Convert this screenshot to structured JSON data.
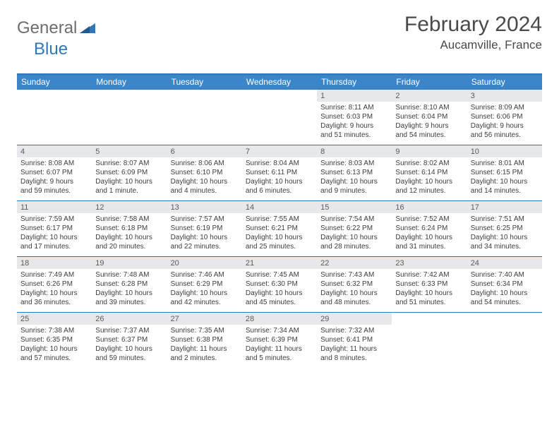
{
  "logo": {
    "general": "General",
    "blue": "Blue"
  },
  "title": "February 2024",
  "location": "Aucamville, France",
  "colors": {
    "header_bg": "#3a86c9",
    "border": "#2f77b8",
    "daynum_bg": "#e7e8ea",
    "text": "#3d3d3d",
    "title_color": "#4a4a4a"
  },
  "weekdays": [
    "Sunday",
    "Monday",
    "Tuesday",
    "Wednesday",
    "Thursday",
    "Friday",
    "Saturday"
  ],
  "weeks": [
    [
      null,
      null,
      null,
      null,
      {
        "n": "1",
        "sr": "Sunrise: 8:11 AM",
        "ss": "Sunset: 6:03 PM",
        "dl1": "Daylight: 9 hours",
        "dl2": "and 51 minutes."
      },
      {
        "n": "2",
        "sr": "Sunrise: 8:10 AM",
        "ss": "Sunset: 6:04 PM",
        "dl1": "Daylight: 9 hours",
        "dl2": "and 54 minutes."
      },
      {
        "n": "3",
        "sr": "Sunrise: 8:09 AM",
        "ss": "Sunset: 6:06 PM",
        "dl1": "Daylight: 9 hours",
        "dl2": "and 56 minutes."
      }
    ],
    [
      {
        "n": "4",
        "sr": "Sunrise: 8:08 AM",
        "ss": "Sunset: 6:07 PM",
        "dl1": "Daylight: 9 hours",
        "dl2": "and 59 minutes."
      },
      {
        "n": "5",
        "sr": "Sunrise: 8:07 AM",
        "ss": "Sunset: 6:09 PM",
        "dl1": "Daylight: 10 hours",
        "dl2": "and 1 minute."
      },
      {
        "n": "6",
        "sr": "Sunrise: 8:06 AM",
        "ss": "Sunset: 6:10 PM",
        "dl1": "Daylight: 10 hours",
        "dl2": "and 4 minutes."
      },
      {
        "n": "7",
        "sr": "Sunrise: 8:04 AM",
        "ss": "Sunset: 6:11 PM",
        "dl1": "Daylight: 10 hours",
        "dl2": "and 6 minutes."
      },
      {
        "n": "8",
        "sr": "Sunrise: 8:03 AM",
        "ss": "Sunset: 6:13 PM",
        "dl1": "Daylight: 10 hours",
        "dl2": "and 9 minutes."
      },
      {
        "n": "9",
        "sr": "Sunrise: 8:02 AM",
        "ss": "Sunset: 6:14 PM",
        "dl1": "Daylight: 10 hours",
        "dl2": "and 12 minutes."
      },
      {
        "n": "10",
        "sr": "Sunrise: 8:01 AM",
        "ss": "Sunset: 6:15 PM",
        "dl1": "Daylight: 10 hours",
        "dl2": "and 14 minutes."
      }
    ],
    [
      {
        "n": "11",
        "sr": "Sunrise: 7:59 AM",
        "ss": "Sunset: 6:17 PM",
        "dl1": "Daylight: 10 hours",
        "dl2": "and 17 minutes."
      },
      {
        "n": "12",
        "sr": "Sunrise: 7:58 AM",
        "ss": "Sunset: 6:18 PM",
        "dl1": "Daylight: 10 hours",
        "dl2": "and 20 minutes."
      },
      {
        "n": "13",
        "sr": "Sunrise: 7:57 AM",
        "ss": "Sunset: 6:19 PM",
        "dl1": "Daylight: 10 hours",
        "dl2": "and 22 minutes."
      },
      {
        "n": "14",
        "sr": "Sunrise: 7:55 AM",
        "ss": "Sunset: 6:21 PM",
        "dl1": "Daylight: 10 hours",
        "dl2": "and 25 minutes."
      },
      {
        "n": "15",
        "sr": "Sunrise: 7:54 AM",
        "ss": "Sunset: 6:22 PM",
        "dl1": "Daylight: 10 hours",
        "dl2": "and 28 minutes."
      },
      {
        "n": "16",
        "sr": "Sunrise: 7:52 AM",
        "ss": "Sunset: 6:24 PM",
        "dl1": "Daylight: 10 hours",
        "dl2": "and 31 minutes."
      },
      {
        "n": "17",
        "sr": "Sunrise: 7:51 AM",
        "ss": "Sunset: 6:25 PM",
        "dl1": "Daylight: 10 hours",
        "dl2": "and 34 minutes."
      }
    ],
    [
      {
        "n": "18",
        "sr": "Sunrise: 7:49 AM",
        "ss": "Sunset: 6:26 PM",
        "dl1": "Daylight: 10 hours",
        "dl2": "and 36 minutes."
      },
      {
        "n": "19",
        "sr": "Sunrise: 7:48 AM",
        "ss": "Sunset: 6:28 PM",
        "dl1": "Daylight: 10 hours",
        "dl2": "and 39 minutes."
      },
      {
        "n": "20",
        "sr": "Sunrise: 7:46 AM",
        "ss": "Sunset: 6:29 PM",
        "dl1": "Daylight: 10 hours",
        "dl2": "and 42 minutes."
      },
      {
        "n": "21",
        "sr": "Sunrise: 7:45 AM",
        "ss": "Sunset: 6:30 PM",
        "dl1": "Daylight: 10 hours",
        "dl2": "and 45 minutes."
      },
      {
        "n": "22",
        "sr": "Sunrise: 7:43 AM",
        "ss": "Sunset: 6:32 PM",
        "dl1": "Daylight: 10 hours",
        "dl2": "and 48 minutes."
      },
      {
        "n": "23",
        "sr": "Sunrise: 7:42 AM",
        "ss": "Sunset: 6:33 PM",
        "dl1": "Daylight: 10 hours",
        "dl2": "and 51 minutes."
      },
      {
        "n": "24",
        "sr": "Sunrise: 7:40 AM",
        "ss": "Sunset: 6:34 PM",
        "dl1": "Daylight: 10 hours",
        "dl2": "and 54 minutes."
      }
    ],
    [
      {
        "n": "25",
        "sr": "Sunrise: 7:38 AM",
        "ss": "Sunset: 6:35 PM",
        "dl1": "Daylight: 10 hours",
        "dl2": "and 57 minutes."
      },
      {
        "n": "26",
        "sr": "Sunrise: 7:37 AM",
        "ss": "Sunset: 6:37 PM",
        "dl1": "Daylight: 10 hours",
        "dl2": "and 59 minutes."
      },
      {
        "n": "27",
        "sr": "Sunrise: 7:35 AM",
        "ss": "Sunset: 6:38 PM",
        "dl1": "Daylight: 11 hours",
        "dl2": "and 2 minutes."
      },
      {
        "n": "28",
        "sr": "Sunrise: 7:34 AM",
        "ss": "Sunset: 6:39 PM",
        "dl1": "Daylight: 11 hours",
        "dl2": "and 5 minutes."
      },
      {
        "n": "29",
        "sr": "Sunrise: 7:32 AM",
        "ss": "Sunset: 6:41 PM",
        "dl1": "Daylight: 11 hours",
        "dl2": "and 8 minutes."
      },
      null,
      null
    ]
  ]
}
